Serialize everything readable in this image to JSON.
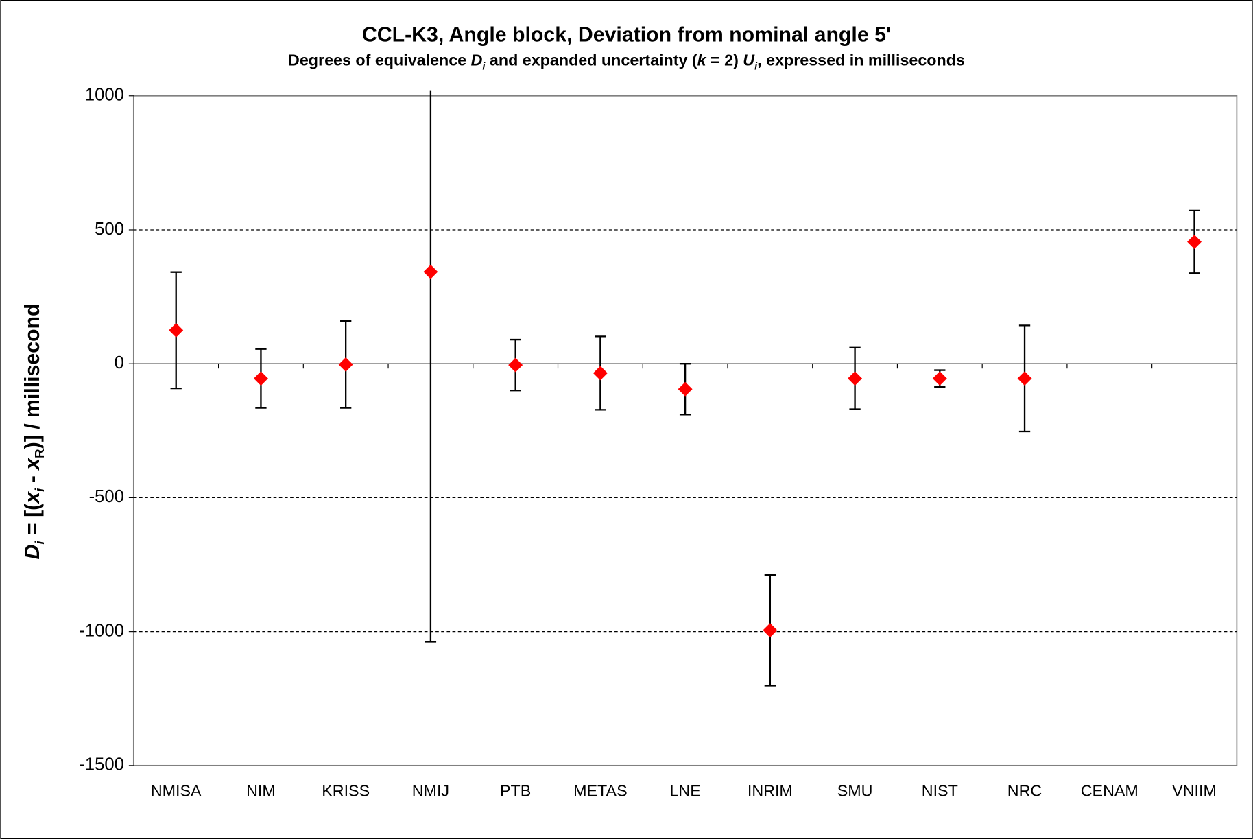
{
  "chart_data": {
    "type": "errorbar",
    "title": "CCL-K3, Angle block, Deviation from nominal angle 5'",
    "subtitle": [
      "Degrees of equivalence ",
      "D",
      "i",
      " and expanded uncertainty (",
      "k",
      " = 2) ",
      "U",
      "i",
      ", expressed in milliseconds"
    ],
    "y_label": [
      "D",
      "i",
      " = [(",
      "x",
      "i",
      " - ",
      "x",
      "R",
      ")] / millisecond"
    ],
    "categories": [
      "NMISA",
      "NIM",
      "KRISS",
      "NMIJ",
      "PTB",
      "METAS",
      "LNE",
      "INRIM",
      "SMU",
      "NIST",
      "NRC",
      "CENAM",
      "VNIIM"
    ],
    "values": [
      125,
      -55,
      -3,
      343,
      -5,
      -35,
      -95,
      -995,
      -55,
      -55,
      -55,
      null,
      455
    ],
    "errors": [
      217,
      110,
      162,
      1381,
      95,
      137,
      95,
      207,
      115,
      31,
      198,
      null,
      117
    ],
    "color": "#ff0000",
    "ylim": [
      -1500,
      1000
    ],
    "yticks": [
      -1500,
      -1000,
      -500,
      0,
      500,
      1000
    ],
    "grid": true
  }
}
